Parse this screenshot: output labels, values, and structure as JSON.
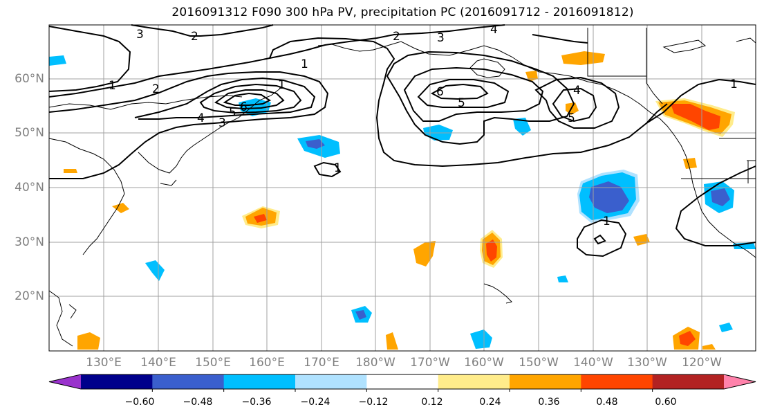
{
  "title": "2016091312 F090 300 hPa PV, precipitation PC (2016091712 - 2016091812)",
  "map": {
    "lat_labels": [
      "60°N",
      "50°N",
      "40°N",
      "30°N",
      "20°N"
    ],
    "lon_labels": [
      "130°E",
      "140°E",
      "150°E",
      "160°E",
      "170°E",
      "180°W",
      "170°W",
      "160°W",
      "150°W",
      "140°W",
      "130°W",
      "120°W"
    ],
    "contour_labels": [
      "3",
      "2",
      "1",
      "2",
      "4",
      "5",
      "6",
      "3",
      "1",
      "1",
      "2",
      "3",
      "4",
      "6",
      "5",
      "4",
      "5",
      "1",
      "1",
      "1"
    ]
  },
  "colorbar": {
    "colors": [
      "#9932cc",
      "#00008b",
      "#3a5fcd",
      "#00bfff",
      "#b0e2ff",
      "#ffffff",
      "#ffec8b",
      "#ffa500",
      "#ff4500",
      "#b22222",
      "#ff82ab"
    ],
    "tick_labels": [
      "−0.60",
      "−0.48",
      "−0.36",
      "−0.24",
      "−0.12",
      "0.12",
      "0.24",
      "0.36",
      "0.48",
      "0.60"
    ]
  }
}
